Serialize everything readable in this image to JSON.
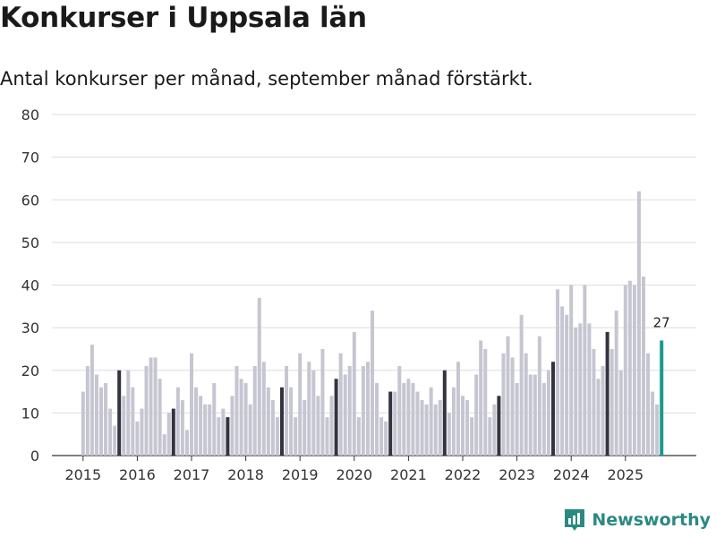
{
  "title": "Konkurser i Uppsala län",
  "subtitle": "Antal konkurser per månad, september månad förstärkt.",
  "brand": {
    "name": "Newsworthy",
    "icon": "newsworthy-logo-icon",
    "color": "#2a8a82"
  },
  "colors": {
    "normal": "#c6c6d2",
    "september": "#343441",
    "latest": "#1a9a8f",
    "grid": "#dddddd"
  },
  "chart_data": {
    "type": "bar",
    "title": "Konkurser i Uppsala län",
    "xlabel": "",
    "ylabel": "",
    "ylim": [
      0,
      80
    ],
    "yticks": [
      0,
      10,
      20,
      30,
      40,
      50,
      60,
      70,
      80
    ],
    "xticks": [
      "2015",
      "2016",
      "2017",
      "2018",
      "2019",
      "2020",
      "2021",
      "2022",
      "2023",
      "2024",
      "2025"
    ],
    "start": "2015-01",
    "highlight_month": 9,
    "last_label": "27",
    "series": [
      {
        "name": "Antal konkurser",
        "values": [
          15,
          21,
          26,
          19,
          16,
          17,
          11,
          7,
          20,
          14,
          20,
          16,
          8,
          11,
          21,
          23,
          23,
          18,
          5,
          10,
          11,
          16,
          13,
          6,
          24,
          16,
          14,
          12,
          12,
          17,
          9,
          11,
          9,
          14,
          21,
          18,
          17,
          12,
          21,
          37,
          22,
          16,
          13,
          9,
          16,
          21,
          16,
          9,
          24,
          13,
          22,
          20,
          14,
          25,
          9,
          14,
          18,
          24,
          19,
          21,
          29,
          9,
          21,
          22,
          34,
          17,
          9,
          8,
          15,
          15,
          21,
          17,
          18,
          17,
          15,
          13,
          12,
          16,
          12,
          13,
          20,
          10,
          16,
          22,
          14,
          13,
          9,
          19,
          27,
          25,
          9,
          12,
          14,
          24,
          28,
          23,
          17,
          33,
          24,
          19,
          19,
          28,
          17,
          20,
          22,
          39,
          35,
          33,
          40,
          30,
          31,
          40,
          31,
          25,
          18,
          21,
          29,
          25,
          34,
          20,
          40,
          41,
          40,
          62,
          42,
          24,
          15,
          12,
          27
        ]
      }
    ]
  }
}
